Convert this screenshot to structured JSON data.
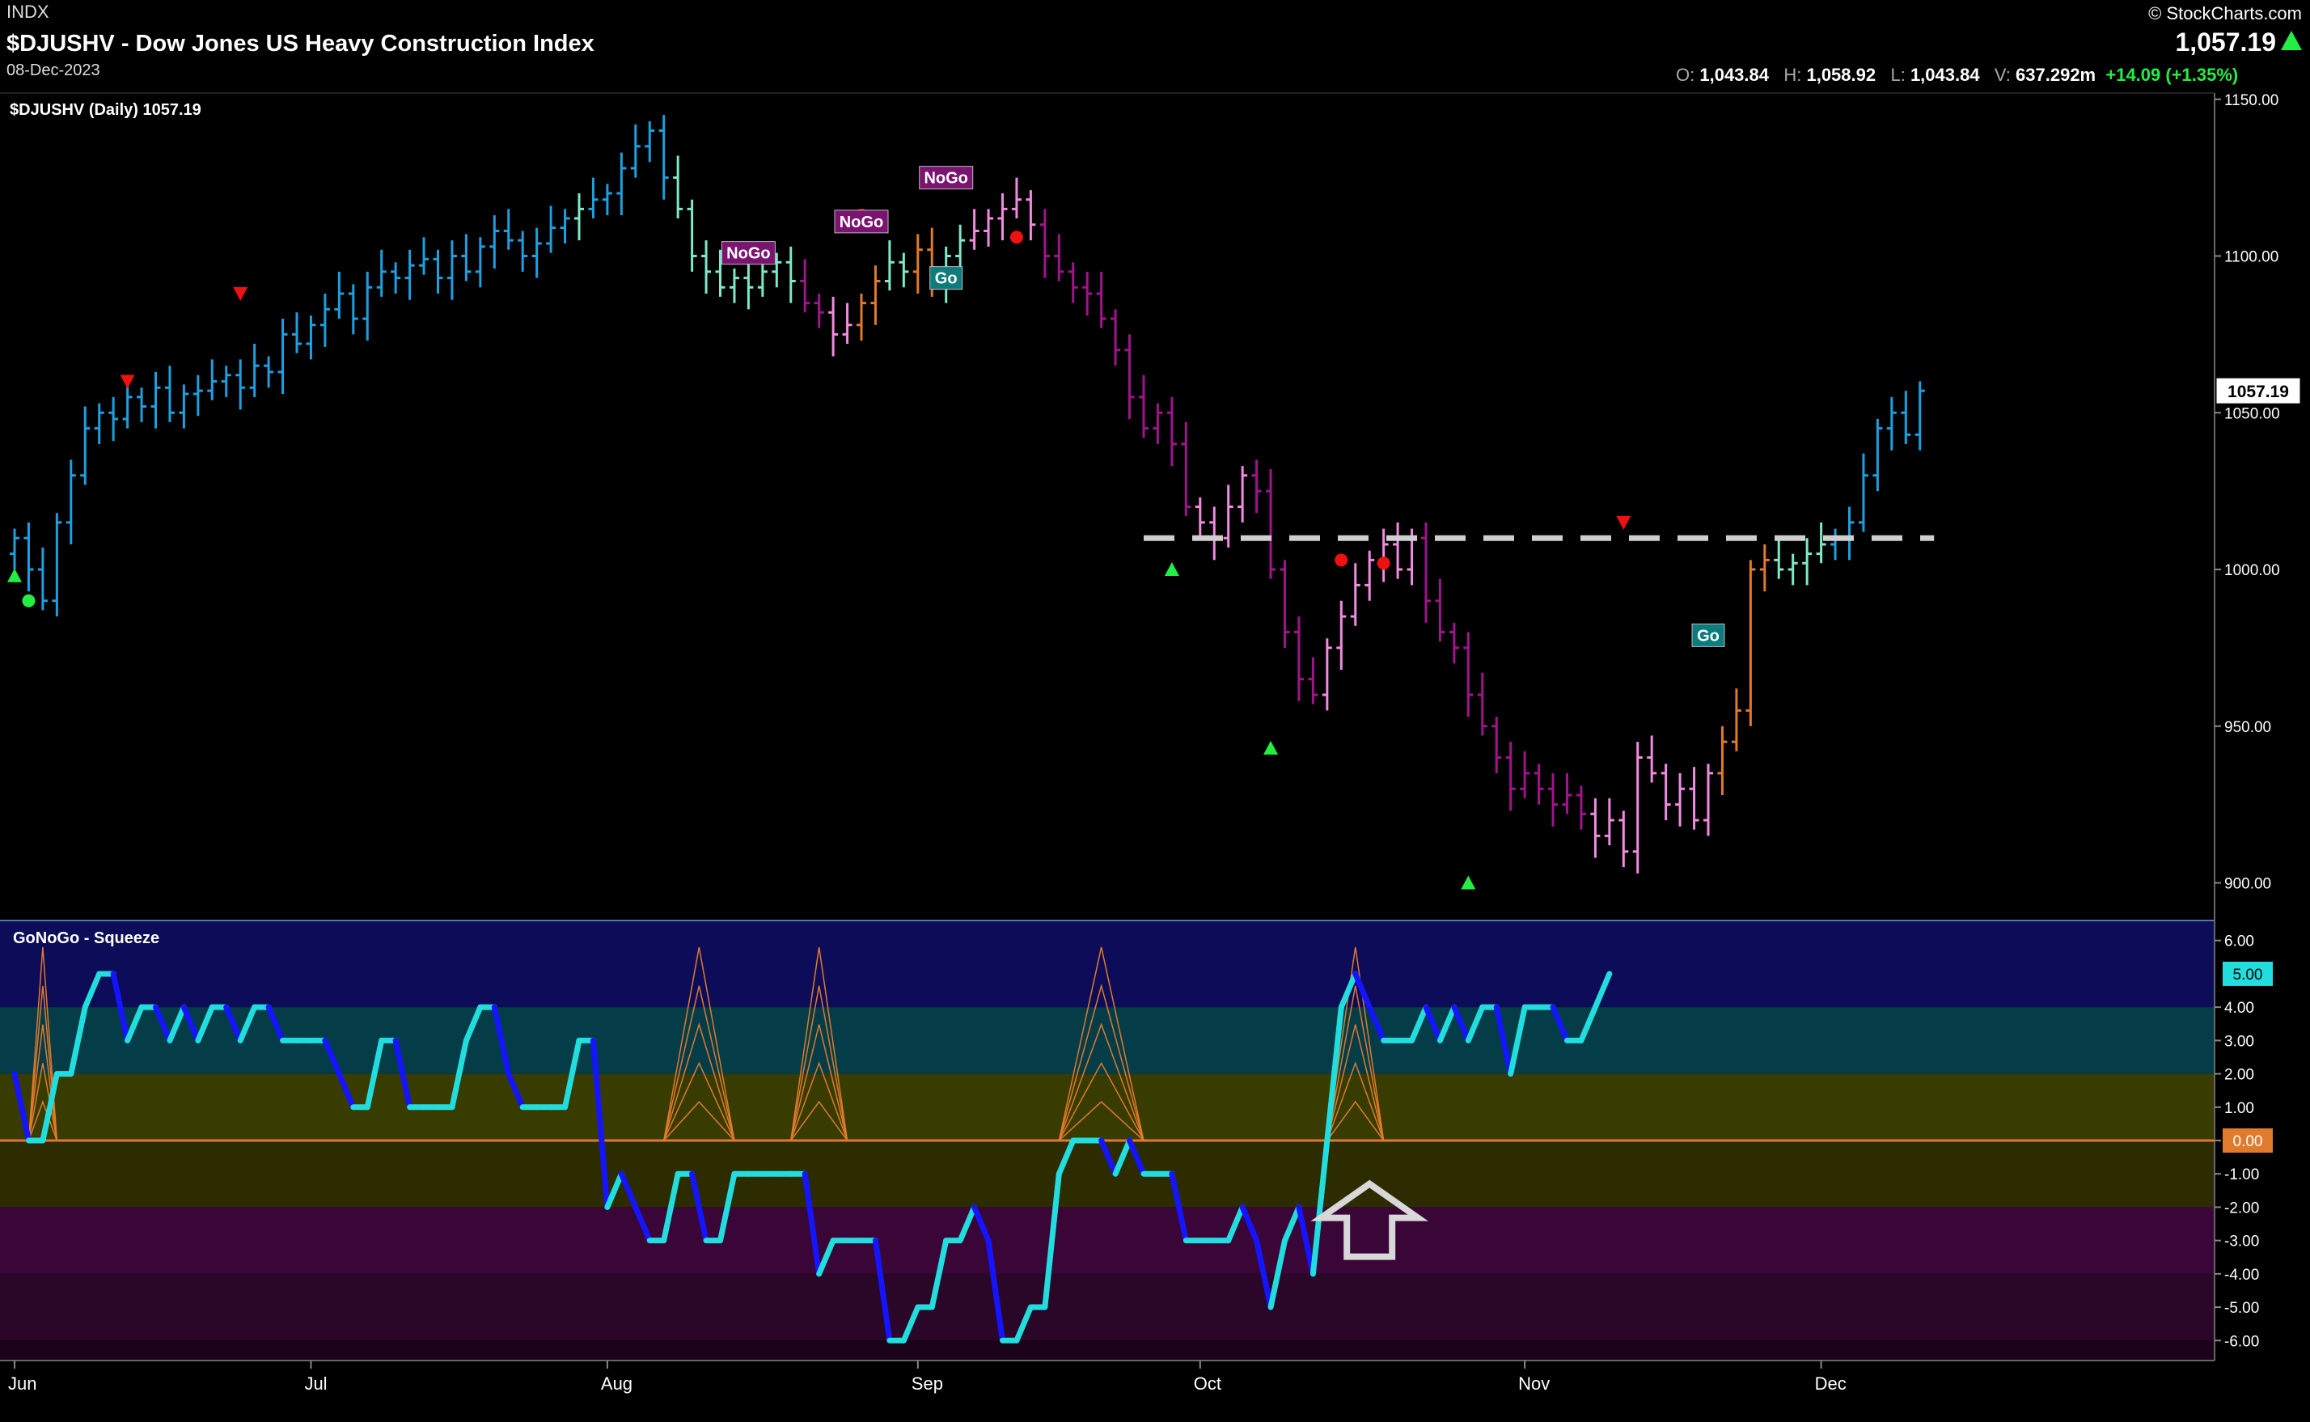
{
  "header": {
    "exchange": "INDX",
    "title": "$DJUSHV - Dow Jones US Heavy Construction Index",
    "date": "08-Dec-2023",
    "logo": "© StockCharts.com",
    "last_price": "1,057.19",
    "ohlc": {
      "o_label": "O:",
      "o": "1,043.84",
      "h_label": "H:",
      "h": "1,058.92",
      "l_label": "L:",
      "l": "1,043.84",
      "v_label": "V:",
      "v": "637.292m",
      "change": "+14.09 (+1.35%)"
    }
  },
  "colors": {
    "strong_go": "#1e9fdf",
    "go": "#7ee8c8",
    "nogo": "#a0148c",
    "weak_nogo": "#f08ce0",
    "neutral": "#e07a2c",
    "osc_blue": "#1414ff",
    "osc_cyan": "#22dddd",
    "up_triangle": "#22ee44",
    "down_triangle": "#ee1111"
  },
  "chart_data": [
    {
      "type": "bar",
      "panel": "price",
      "legend": "$DJUSHV (Daily) 1057.19",
      "ylim": [
        888,
        1152
      ],
      "yticks": [
        900,
        950,
        1000,
        1050,
        1100,
        1150
      ],
      "ytick_labels": [
        "900.00",
        "950.00",
        "1000.00",
        "1050.00",
        "1100.00",
        "1150.00"
      ],
      "price_label": "1057.19",
      "x_labels": [
        {
          "label": "Jun",
          "i": 0
        },
        {
          "label": "Jul",
          "i": 21
        },
        {
          "label": "Aug",
          "i": 42
        },
        {
          "label": "Sep",
          "i": 64
        },
        {
          "label": "Oct",
          "i": 84
        },
        {
          "label": "Nov",
          "i": 107
        },
        {
          "label": "Dec",
          "i": 128
        }
      ],
      "resistance_level": 1010,
      "closes": [
        1010,
        1000,
        990,
        1015,
        1030,
        1045,
        1050,
        1048,
        1055,
        1052,
        1058,
        1050,
        1056,
        1057,
        1060,
        1062,
        1058,
        1065,
        1063,
        1075,
        1072,
        1078,
        1083,
        1088,
        1080,
        1090,
        1095,
        1093,
        1097,
        1099,
        1093,
        1100,
        1095,
        1103,
        1108,
        1105,
        1100,
        1104,
        1109,
        1112,
        1115,
        1118,
        1120,
        1128,
        1135,
        1140,
        1125,
        1115,
        1100,
        1095,
        1090,
        1093,
        1090,
        1095,
        1098,
        1092,
        1085,
        1082,
        1075,
        1078,
        1085,
        1092,
        1098,
        1095,
        1102,
        1090,
        1100,
        1105,
        1108,
        1112,
        1115,
        1118,
        1110,
        1100,
        1095,
        1090,
        1088,
        1080,
        1070,
        1055,
        1045,
        1050,
        1040,
        1020,
        1015,
        1010,
        1020,
        1030,
        1025,
        1000,
        980,
        965,
        960,
        975,
        985,
        995,
        1003,
        1008,
        1000,
        1010,
        990,
        980,
        975,
        960,
        950,
        940,
        930,
        935,
        930,
        925,
        928,
        922,
        915,
        920,
        910,
        940,
        935,
        925,
        930,
        920,
        935,
        945,
        955,
        1000,
        1003,
        1000,
        1002,
        1005,
        1008,
        1010,
        1015,
        1030,
        1045,
        1050,
        1043,
        1057
      ],
      "colors": [
        "sg",
        "sg",
        "sg",
        "sg",
        "sg",
        "sg",
        "sg",
        "sg",
        "sg",
        "sg",
        "sg",
        "sg",
        "sg",
        "sg",
        "sg",
        "sg",
        "sg",
        "sg",
        "sg",
        "sg",
        "sg",
        "sg",
        "sg",
        "sg",
        "sg",
        "sg",
        "sg",
        "sg",
        "sg",
        "sg",
        "sg",
        "sg",
        "sg",
        "sg",
        "sg",
        "sg",
        "sg",
        "sg",
        "sg",
        "sg",
        "go",
        "sg",
        "sg",
        "sg",
        "sg",
        "sg",
        "sg",
        "go",
        "go",
        "go",
        "go",
        "go",
        "go",
        "go",
        "go",
        "go",
        "nogo",
        "nogo",
        "wn",
        "wn",
        "ne",
        "ne",
        "go",
        "go",
        "ne",
        "ne",
        "go",
        "go",
        "wn",
        "wn",
        "wn",
        "wn",
        "wn",
        "nogo",
        "nogo",
        "nogo",
        "nogo",
        "nogo",
        "nogo",
        "nogo",
        "nogo",
        "nogo",
        "nogo",
        "nogo",
        "wn",
        "wn",
        "wn",
        "wn",
        "nogo",
        "nogo",
        "nogo",
        "nogo",
        "nogo",
        "wn",
        "wn",
        "wn",
        "wn",
        "wn",
        "wn",
        "wn",
        "nogo",
        "nogo",
        "nogo",
        "nogo",
        "nogo",
        "nogo",
        "nogo",
        "nogo",
        "nogo",
        "nogo",
        "nogo",
        "nogo",
        "wn",
        "wn",
        "wn",
        "wn",
        "wn",
        "wn",
        "wn",
        "wn",
        "wn",
        "ne",
        "ne",
        "ne",
        "ne",
        "go",
        "go",
        "go",
        "go",
        "sg",
        "sg",
        "sg",
        "sg",
        "sg",
        "sg",
        "sg"
      ],
      "up_triangles": [
        {
          "i": 0,
          "y": 998
        },
        {
          "i": 82,
          "y": 1000
        },
        {
          "i": 89,
          "y": 943
        },
        {
          "i": 103,
          "y": 900
        }
      ],
      "down_triangles": [
        {
          "i": 8,
          "y": 1060
        },
        {
          "i": 16,
          "y": 1088
        },
        {
          "i": 114,
          "y": 1015
        }
      ],
      "red_dots": [
        {
          "i": 60,
          "y": 1113
        },
        {
          "i": 71,
          "y": 1106
        },
        {
          "i": 94,
          "y": 1003
        },
        {
          "i": 97,
          "y": 1002
        }
      ],
      "green_dots": [
        {
          "i": 1,
          "y": 990
        }
      ],
      "labels": [
        {
          "text": "NoGo",
          "kind": "nogo",
          "i": 52,
          "y": 1101
        },
        {
          "text": "NoGo",
          "kind": "nogo",
          "i": 60,
          "y": 1111
        },
        {
          "text": "NoGo",
          "kind": "nogo",
          "i": 66,
          "y": 1125
        },
        {
          "text": "Go",
          "kind": "go",
          "i": 66,
          "y": 1093
        },
        {
          "text": "Go",
          "kind": "go",
          "i": 120,
          "y": 979
        }
      ]
    },
    {
      "type": "line",
      "panel": "oscillator",
      "legend": "GoNoGo - Squeeze",
      "ylim": [
        -6.6,
        6.6
      ],
      "yticks": [
        6,
        4,
        3,
        2,
        1,
        0,
        -1,
        -2,
        -3,
        -4,
        -5,
        -6
      ],
      "ytick_labels": [
        "6.00",
        "4.00",
        "3.00",
        "2.00",
        "1.00",
        "0.00",
        "-1.00",
        "-2.00",
        "-3.00",
        "-4.00",
        "-5.00",
        "-6.00"
      ],
      "badge_labels": [
        "5.00",
        "0.00"
      ],
      "values": [
        2,
        0,
        0,
        2,
        2,
        4,
        5,
        5,
        3,
        4,
        4,
        3,
        4,
        3,
        4,
        4,
        3,
        4,
        4,
        3,
        3,
        3,
        3,
        2,
        1,
        1,
        3,
        3,
        1,
        1,
        1,
        1,
        3,
        4,
        4,
        2,
        1,
        1,
        1,
        1,
        3,
        3,
        -2,
        -1,
        -2,
        -3,
        -3,
        -1,
        -1,
        -3,
        -3,
        -1,
        -1,
        -1,
        -1,
        -1,
        -1,
        -4,
        -3,
        -3,
        -3,
        -3,
        -6,
        -6,
        -5,
        -5,
        -3,
        -3,
        -2,
        -3,
        -6,
        -6,
        -5,
        -5,
        -1,
        0,
        0,
        0,
        -1,
        0,
        -1,
        -1,
        -1,
        -3,
        -3,
        -3,
        -3,
        -2,
        -3,
        -5,
        -3,
        -2,
        -4,
        0,
        4,
        5,
        4,
        3,
        3,
        3,
        4,
        3,
        4,
        3,
        4,
        4,
        2,
        4,
        4,
        4,
        3,
        3,
        4,
        5
      ],
      "squeeze_fill": [
        {
          "start": 1,
          "end": 3
        },
        {
          "start": 46,
          "end": 51
        },
        {
          "start": 55,
          "end": 59
        },
        {
          "start": 74,
          "end": 80
        },
        {
          "start": 93,
          "end": 97
        }
      ],
      "arrow_i": 96
    }
  ]
}
